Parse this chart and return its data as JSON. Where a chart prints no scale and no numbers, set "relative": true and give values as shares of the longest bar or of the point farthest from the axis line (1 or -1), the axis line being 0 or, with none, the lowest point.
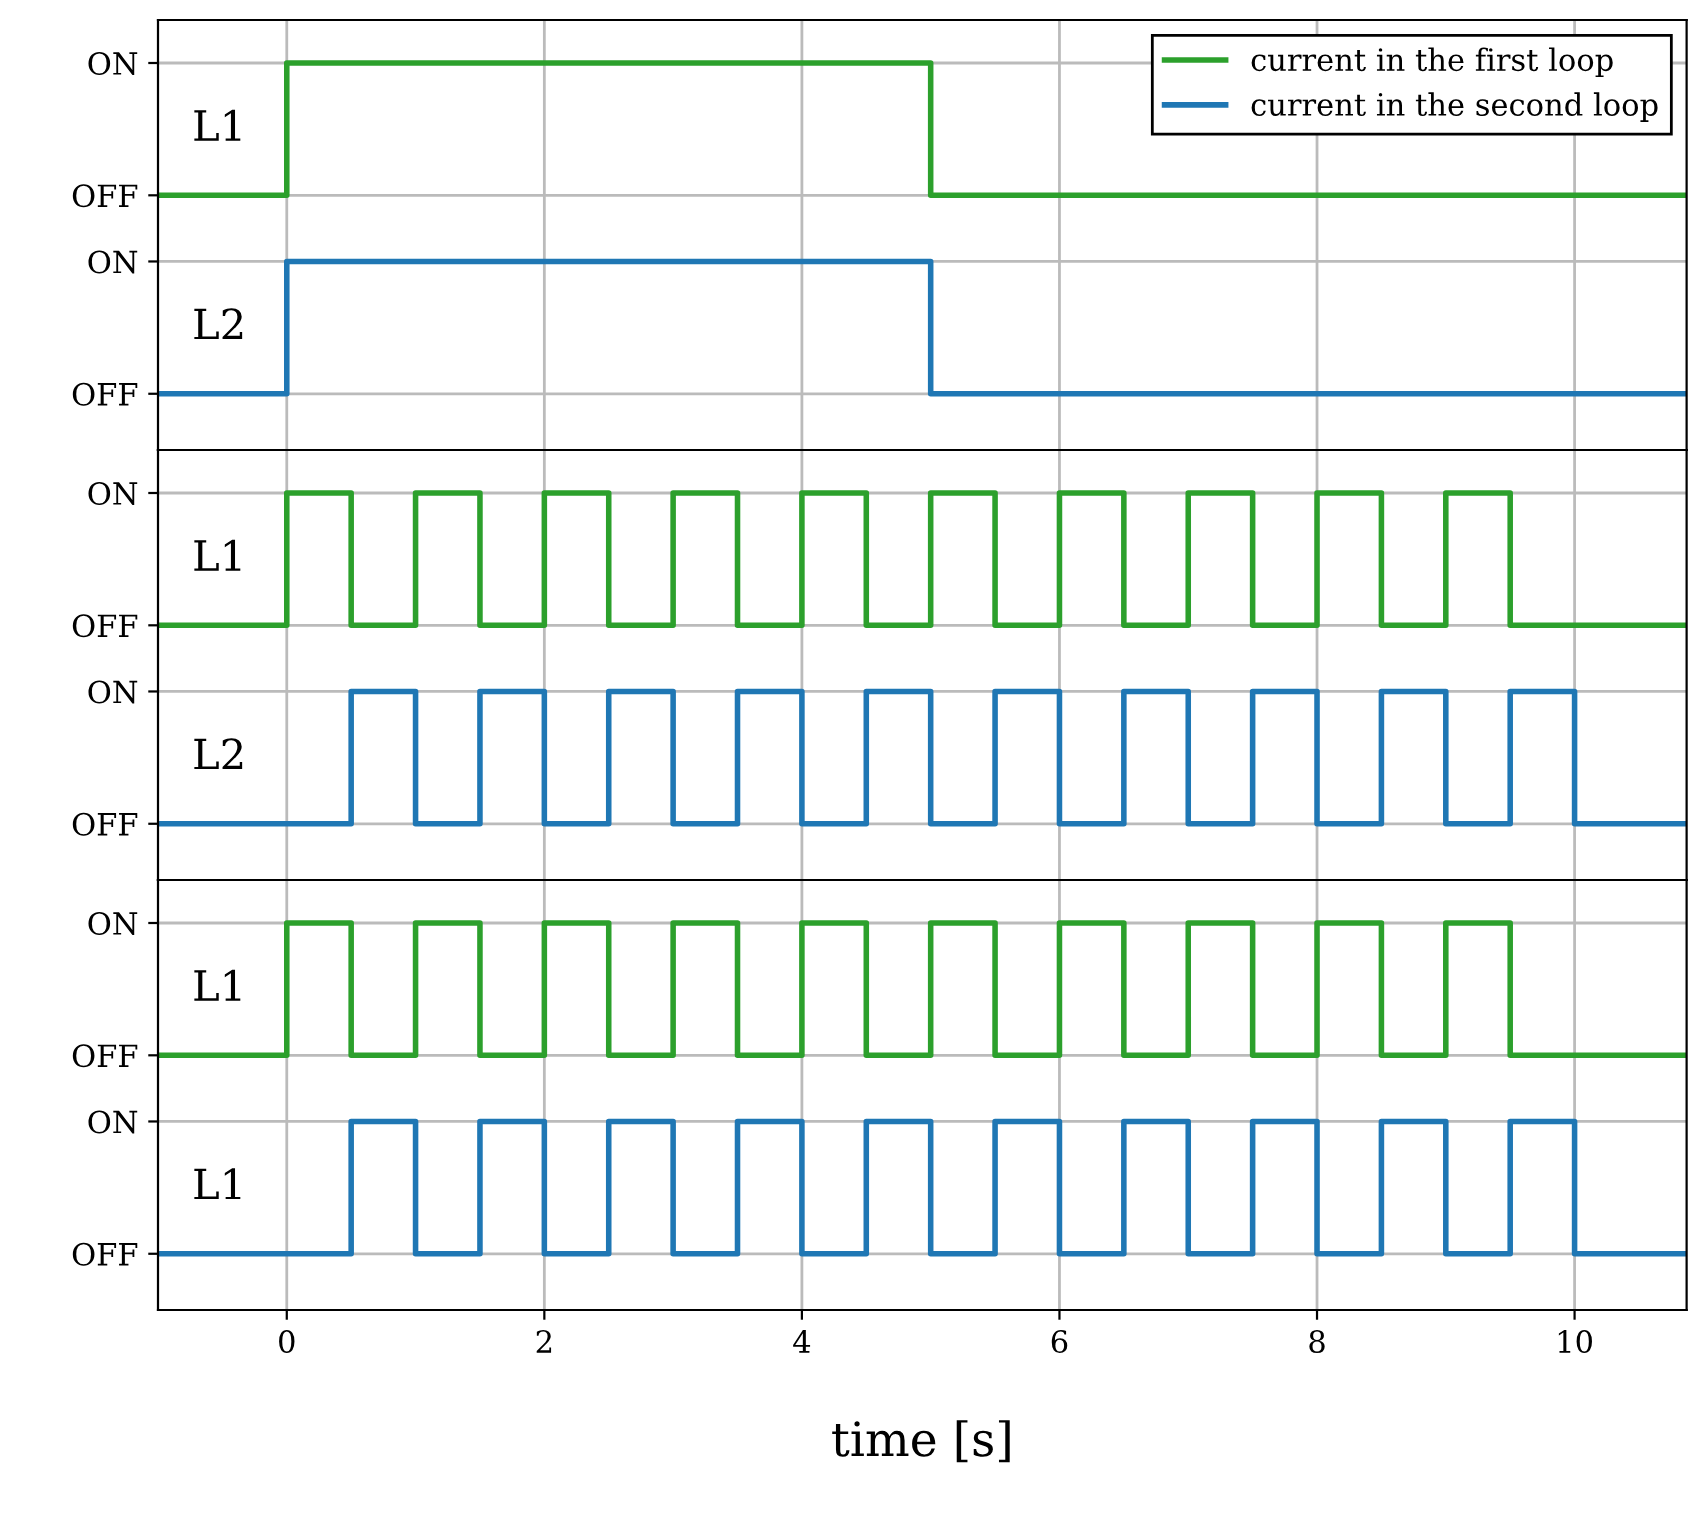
{
  "chart_data": [
    {
      "type": "step",
      "relative": true,
      "legend": "top right",
      "grid": true,
      "tick_labels": "y",
      "line_style": "solid",
      "xlim": [
        -1,
        10.87
      ],
      "xticks": [
        0,
        2,
        4,
        6,
        8,
        10
      ],
      "annotations": [
        "L1",
        "L2",
        "ON",
        "OFF",
        "ON",
        "OFF"
      ],
      "series": [
        {
          "name": "current in the first loop",
          "color": "#2ca02c",
          "x": [
            -1,
            0,
            5,
            10.87
          ],
          "values": [
            0.6,
            1,
            0.6,
            0.6
          ]
        },
        {
          "name": "current in the second loop",
          "color": "#1f77b4",
          "x": [
            -1,
            0,
            5,
            10.87
          ],
          "values": [
            0,
            0.4,
            0,
            0
          ]
        }
      ]
    },
    {
      "type": "step",
      "relative": true,
      "grid": true,
      "tick_labels": "y",
      "line_style": "solid",
      "xlim": [
        -1,
        10.87
      ],
      "xticks": [
        0,
        2,
        4,
        6,
        8,
        10
      ],
      "annotations": [
        "L1",
        "L2",
        "ON",
        "OFF",
        "ON",
        "OFF"
      ],
      "series": [
        {
          "color": "#2ca02c",
          "x": [
            -1,
            0,
            0.5,
            1,
            1.5,
            2,
            2.5,
            3,
            3.5,
            4,
            4.5,
            5,
            5.5,
            6,
            6.5,
            7,
            7.5,
            8,
            8.5,
            9,
            9.5,
            10.87
          ],
          "values": [
            0.6,
            1,
            0.6,
            1,
            0.6,
            1,
            0.6,
            1,
            0.6,
            1,
            0.6,
            1,
            0.6,
            1,
            0.6,
            1,
            0.6,
            1,
            0.6,
            1,
            0.6,
            0.6
          ]
        },
        {
          "color": "#1f77b4",
          "x": [
            -1,
            0.5,
            1,
            1.5,
            2,
            2.5,
            3,
            3.5,
            4,
            4.5,
            5,
            5.5,
            6,
            6.5,
            7,
            7.5,
            8,
            8.5,
            9,
            9.5,
            10,
            10.87
          ],
          "values": [
            0,
            0.4,
            0,
            0.4,
            0,
            0.4,
            0,
            0.4,
            0,
            0.4,
            0,
            0.4,
            0,
            0.4,
            0,
            0.4,
            0,
            0.4,
            0,
            0.4,
            0,
            0
          ]
        }
      ]
    },
    {
      "type": "step",
      "relative": true,
      "grid": true,
      "line_style": "solid",
      "xlabel": "time [s]",
      "xlim": [
        -1,
        10.87
      ],
      "xticks": [
        0,
        2,
        4,
        6,
        8,
        10
      ],
      "annotations": [
        "L1",
        "L1",
        "ON",
        "OFF",
        "ON",
        "OFF"
      ],
      "series": [
        {
          "color": "#2ca02c",
          "x": [
            -1,
            0,
            0.5,
            1,
            1.5,
            2,
            2.5,
            3,
            3.5,
            4,
            4.5,
            5,
            5.5,
            6,
            6.5,
            7,
            7.5,
            8,
            8.5,
            9,
            9.5,
            10.87
          ],
          "values": [
            0.6,
            1,
            0.6,
            1,
            0.6,
            1,
            0.6,
            1,
            0.6,
            1,
            0.6,
            1,
            0.6,
            1,
            0.6,
            1,
            0.6,
            1,
            0.6,
            1,
            0.6,
            0.6
          ]
        },
        {
          "color": "#1f77b4",
          "x": [
            -1,
            0.5,
            1,
            1.5,
            2,
            2.5,
            3,
            3.5,
            4,
            4.5,
            5,
            5.5,
            6,
            6.5,
            7,
            7.5,
            8,
            8.5,
            9,
            9.5,
            10,
            10.87
          ],
          "values": [
            0,
            0.4,
            0,
            0.4,
            0,
            0.4,
            0,
            0.4,
            0,
            0.4,
            0,
            0.4,
            0,
            0.4,
            0,
            0.4,
            0,
            0.4,
            0,
            0.4,
            0,
            0
          ]
        }
      ]
    }
  ]
}
